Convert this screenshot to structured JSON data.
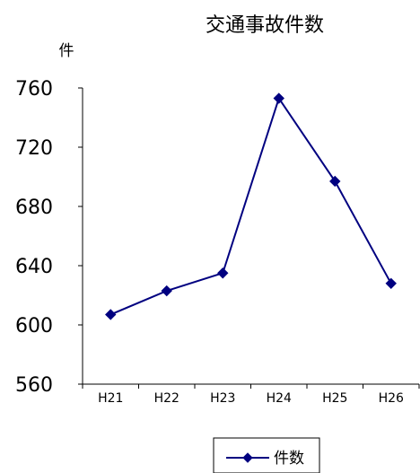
{
  "chart_data": {
    "type": "line",
    "title": "交通事故件数",
    "ylabel": "件",
    "xlabel": "",
    "categories": [
      "H21",
      "H22",
      "H23",
      "H24",
      "H25",
      "H26"
    ],
    "series": [
      {
        "name": "件数",
        "values": [
          607,
          623,
          635,
          753,
          697,
          628
        ],
        "color": "#000080",
        "marker": "diamond"
      }
    ],
    "ylim": [
      560,
      760
    ],
    "yticks": [
      "760",
      "720",
      "680",
      "640",
      "600",
      "560"
    ],
    "grid": false,
    "legend": "bottom"
  }
}
